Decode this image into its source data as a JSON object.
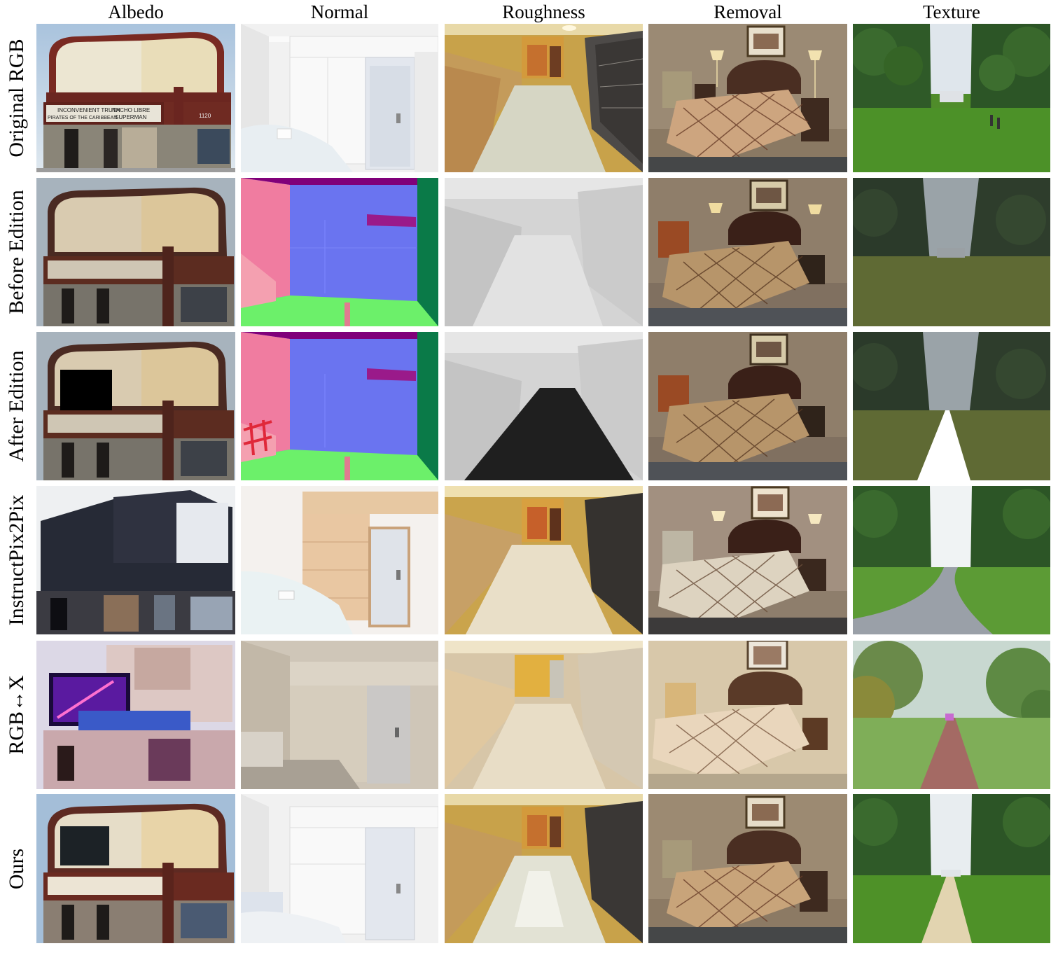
{
  "columns": [
    "Albedo",
    "Normal",
    "Roughness",
    "Removal",
    "Texture"
  ],
  "rows": [
    "Original RGB",
    "Before Edition",
    "After Edition",
    "InstructPix2Pix",
    "RGB↔X",
    "Ours"
  ],
  "marquee": {
    "line1_left": "INCONVENIENT TRUTH",
    "line1_right": "NACHO LIBRE",
    "line2_left": "PIRATES OF THE CARIBBEAN",
    "line2_right": "SUPERMAN",
    "number": "1120"
  }
}
